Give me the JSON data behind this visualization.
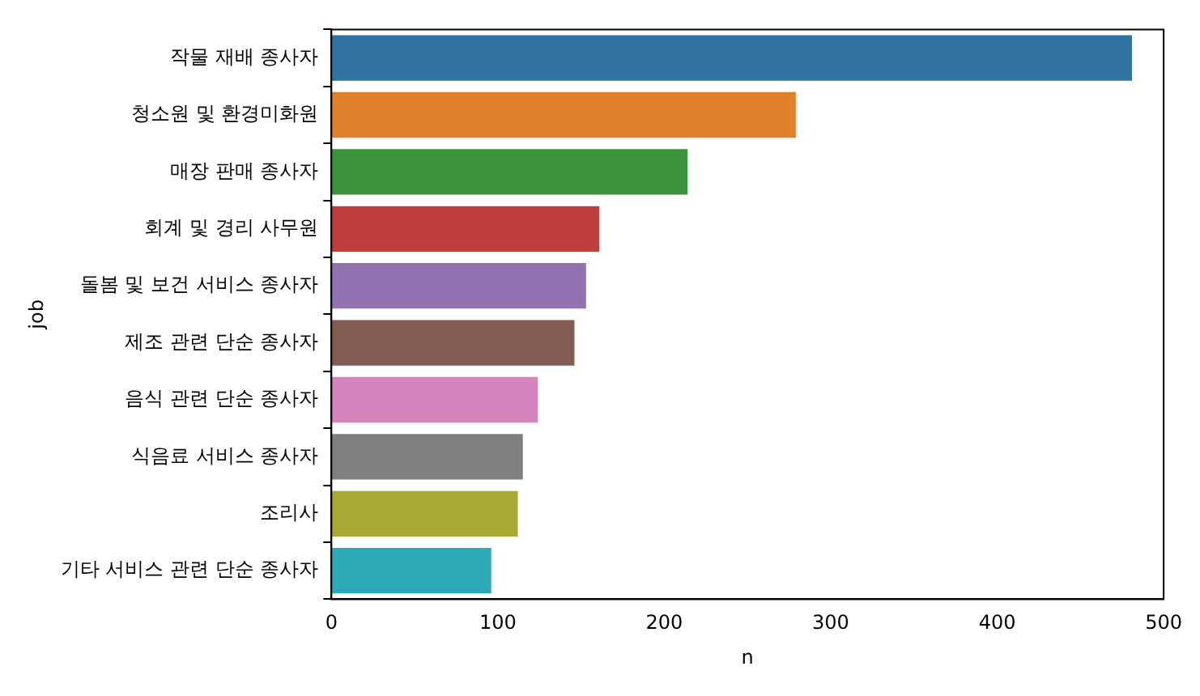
{
  "chart_data": {
    "type": "bar",
    "orientation": "horizontal",
    "xlabel": "n",
    "ylabel": "job",
    "categories": [
      "작물 재배 종사자",
      "청소원 및 환경미화원",
      "매장 판매 종사자",
      "회계 및 경리 사무원",
      "돌봄 및 보건 서비스 종사자",
      "제조 관련 단순 종사자",
      "음식 관련 단순 종사자",
      "식음료 서비스 종사자",
      "조리사",
      "기타 서비스 관련 단순 종사자"
    ],
    "values": [
      481,
      279,
      214,
      161,
      153,
      146,
      124,
      115,
      112,
      96
    ],
    "colors": [
      "#3274a1",
      "#e1812c",
      "#3a923a",
      "#c03d3e",
      "#9372b2",
      "#845b53",
      "#d684bd",
      "#7f7f7f",
      "#a9aa35",
      "#2ea9b8"
    ],
    "xlim": [
      0,
      500
    ],
    "xticks": [
      0,
      100,
      200,
      300,
      400,
      500
    ],
    "grid": false,
    "legend": false
  }
}
